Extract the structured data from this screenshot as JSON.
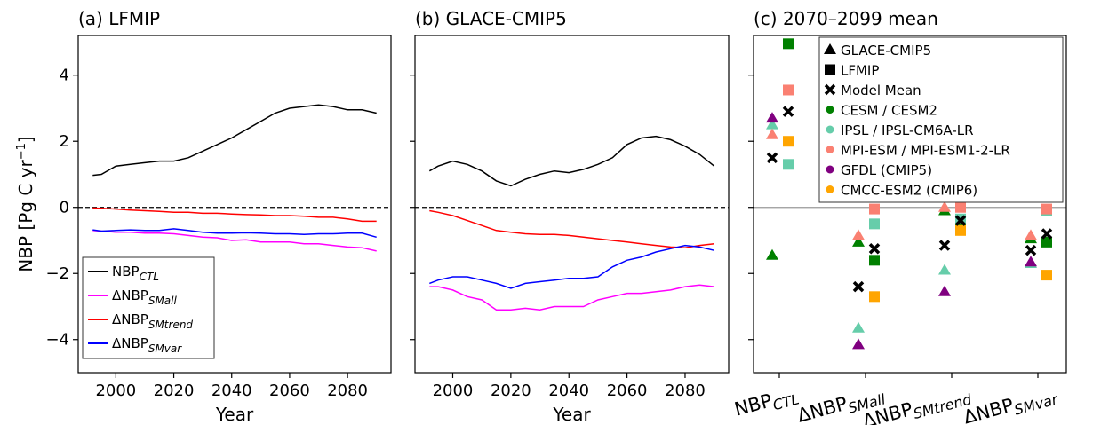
{
  "chart_data": [
    {
      "type": "line",
      "title": "(a) LFMIP",
      "xlabel": "Year",
      "ylabel": {
        "text": "NBP [Pg C yr",
        "sup": "−1",
        "close": "]"
      },
      "xlim": [
        1987,
        2095
      ],
      "xticks": [
        2000,
        2020,
        2040,
        2060,
        2080
      ],
      "ylim": [
        -5,
        5.2
      ],
      "yticks": [
        {
          "value": -4,
          "label": "−4"
        },
        {
          "value": -2,
          "label": "−2"
        },
        0,
        2,
        4
      ],
      "zero_line": "dashed",
      "legend": "lower left",
      "x": [
        1992,
        1995,
        2000,
        2005,
        2010,
        2015,
        2020,
        2025,
        2030,
        2035,
        2040,
        2045,
        2050,
        2055,
        2060,
        2065,
        2070,
        2075,
        2080,
        2085,
        2090
      ],
      "series": [
        {
          "name": "NBP",
          "sub": "CTL",
          "color": "#000000",
          "values": [
            0.97,
            1.0,
            1.25,
            1.3,
            1.35,
            1.4,
            1.4,
            1.5,
            1.7,
            1.9,
            2.1,
            2.35,
            2.6,
            2.85,
            3.0,
            3.05,
            3.1,
            3.05,
            2.95,
            2.95,
            2.85
          ]
        },
        {
          "name": "ΔNBP",
          "sub": "SMall",
          "color": "#ff00ff",
          "values": [
            -0.7,
            -0.72,
            -0.75,
            -0.75,
            -0.78,
            -0.78,
            -0.8,
            -0.85,
            -0.9,
            -0.92,
            -1.0,
            -0.98,
            -1.05,
            -1.05,
            -1.05,
            -1.1,
            -1.1,
            -1.15,
            -1.2,
            -1.22,
            -1.32
          ]
        },
        {
          "name": "ΔNBP",
          "sub": "SMtrend",
          "color": "#ff0000",
          "values": [
            -0.02,
            -0.03,
            -0.05,
            -0.08,
            -0.1,
            -0.12,
            -0.15,
            -0.15,
            -0.18,
            -0.18,
            -0.2,
            -0.22,
            -0.23,
            -0.25,
            -0.25,
            -0.27,
            -0.3,
            -0.3,
            -0.35,
            -0.42,
            -0.42
          ]
        },
        {
          "name": "ΔNBP",
          "sub": "SMvar",
          "color": "#0000ff",
          "values": [
            -0.68,
            -0.72,
            -0.7,
            -0.68,
            -0.7,
            -0.7,
            -0.65,
            -0.7,
            -0.75,
            -0.78,
            -0.78,
            -0.77,
            -0.78,
            -0.8,
            -0.8,
            -0.82,
            -0.8,
            -0.8,
            -0.78,
            -0.78,
            -0.9
          ]
        }
      ]
    },
    {
      "type": "line",
      "title": "(b) GLACE-CMIP5",
      "xlabel": "Year",
      "xlim": [
        1987,
        2095
      ],
      "xticks": [
        2000,
        2020,
        2040,
        2060,
        2080
      ],
      "ylim": [
        -5,
        5.2
      ],
      "zero_line": "dashed",
      "x": [
        1992,
        1995,
        2000,
        2005,
        2010,
        2015,
        2020,
        2025,
        2030,
        2035,
        2040,
        2045,
        2050,
        2055,
        2060,
        2065,
        2070,
        2075,
        2080,
        2085,
        2090
      ],
      "series": [
        {
          "color": "#000000",
          "values": [
            1.1,
            1.25,
            1.4,
            1.3,
            1.1,
            0.8,
            0.65,
            0.85,
            1.0,
            1.1,
            1.05,
            1.15,
            1.3,
            1.5,
            1.9,
            2.1,
            2.15,
            2.05,
            1.85,
            1.6,
            1.25
          ]
        },
        {
          "color": "#ff00ff",
          "values": [
            -2.4,
            -2.4,
            -2.5,
            -2.7,
            -2.8,
            -3.1,
            -3.1,
            -3.05,
            -3.1,
            -3.0,
            -3.0,
            -3.0,
            -2.8,
            -2.7,
            -2.6,
            -2.6,
            -2.55,
            -2.5,
            -2.4,
            -2.35,
            -2.4
          ]
        },
        {
          "color": "#ff0000",
          "values": [
            -0.1,
            -0.15,
            -0.25,
            -0.4,
            -0.55,
            -0.7,
            -0.75,
            -0.8,
            -0.82,
            -0.82,
            -0.85,
            -0.9,
            -0.95,
            -1.0,
            -1.05,
            -1.1,
            -1.15,
            -1.2,
            -1.22,
            -1.15,
            -1.1
          ]
        },
        {
          "color": "#0000ff",
          "values": [
            -2.3,
            -2.2,
            -2.1,
            -2.1,
            -2.2,
            -2.3,
            -2.45,
            -2.3,
            -2.25,
            -2.2,
            -2.15,
            -2.15,
            -2.1,
            -1.8,
            -1.6,
            -1.5,
            -1.35,
            -1.25,
            -1.15,
            -1.2,
            -1.3
          ]
        }
      ]
    },
    {
      "type": "dot",
      "title": "(c) 2070–2099 mean",
      "ylim": [
        -5,
        5.2
      ],
      "zero_line": "solid",
      "legend": "upper right",
      "categories": [
        {
          "name": "NBP",
          "sub": "CTL"
        },
        {
          "name": "ΔNBP",
          "sub": "SMall"
        },
        {
          "name": "ΔNBP",
          "sub": "SMtrend"
        },
        {
          "name": "ΔNBP",
          "sub": "SMvar"
        }
      ],
      "marker_legend": [
        {
          "name": "GLACE-CMIP5",
          "shape": "triangle"
        },
        {
          "name": "LFMIP",
          "shape": "square"
        }
      ],
      "series": [
        {
          "name": "Model Mean",
          "shape": "cross",
          "color": "#000000",
          "glace": [
            1.5,
            -2.4,
            -1.15,
            -1.3
          ],
          "lfmip": [
            2.9,
            -1.25,
            -0.4,
            -0.8
          ]
        },
        {
          "name": "CESM / CESM2",
          "shape": "circle",
          "color": "#008000",
          "glace": [
            -1.45,
            -1.05,
            -0.1,
            -0.95
          ],
          "lfmip": [
            4.95,
            -1.6,
            -0.4,
            -1.05
          ]
        },
        {
          "name": "IPSL / IPSL-CM6A-LR",
          "shape": "circle",
          "color": "#66cdaa",
          "glace": [
            2.5,
            -3.65,
            -1.9,
            -1.7
          ],
          "lfmip": [
            1.3,
            -0.5,
            -0.35,
            -0.1
          ]
        },
        {
          "name": "MPI-ESM / MPI-ESM1-2-LR",
          "shape": "circle",
          "color": "#fa8072",
          "glace": [
            2.2,
            -0.85,
            0.0,
            -0.85
          ],
          "lfmip": [
            3.55,
            -0.05,
            0.0,
            -0.05
          ]
        },
        {
          "name": "GFDL (CMIP5)",
          "shape": "circle",
          "color": "#800080",
          "glace": [
            2.7,
            -4.15,
            -2.55,
            -1.65
          ],
          "lfmip": [
            null,
            null,
            null,
            null
          ]
        },
        {
          "name": "CMCC-ESM2 (CMIP6)",
          "shape": "circle",
          "color": "#ffa500",
          "glace": [
            null,
            null,
            null,
            null
          ],
          "lfmip": [
            2.0,
            -2.7,
            -0.7,
            -2.05
          ]
        }
      ]
    }
  ]
}
